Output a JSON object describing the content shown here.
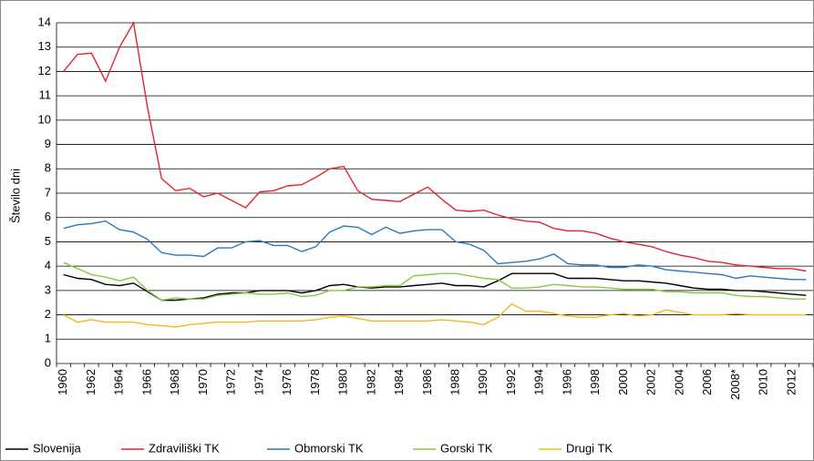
{
  "chart_data": {
    "type": "line",
    "y_label": "Število dni",
    "categories": [
      "1960",
      null,
      "1962",
      null,
      "1964",
      null,
      "1966",
      null,
      "1968",
      null,
      "1970",
      null,
      "1972",
      null,
      "1974",
      null,
      "1976",
      null,
      "1978",
      null,
      "1980",
      null,
      "1982",
      null,
      "1984",
      null,
      "1986",
      null,
      "1988",
      null,
      "1990",
      null,
      "1992",
      null,
      "1994",
      null,
      "1996",
      null,
      "1998",
      null,
      "2000",
      null,
      "2002",
      null,
      "2004",
      null,
      "2006",
      null,
      "2008*",
      null,
      "2010",
      null,
      "2012",
      null
    ],
    "series": [
      {
        "name": "Slovenija",
        "color": "#000000",
        "values": [
          3.65,
          3.5,
          3.45,
          3.25,
          3.2,
          3.3,
          2.95,
          2.6,
          2.6,
          2.65,
          2.7,
          2.85,
          2.9,
          2.9,
          3.0,
          3.0,
          3.0,
          2.9,
          3.0,
          3.2,
          3.25,
          3.15,
          3.1,
          3.15,
          3.15,
          3.2,
          3.25,
          3.3,
          3.2,
          3.2,
          3.15,
          3.4,
          3.7,
          3.7,
          3.7,
          3.7,
          3.5,
          3.5,
          3.5,
          3.45,
          3.4,
          3.4,
          3.35,
          3.3,
          3.2,
          3.1,
          3.05,
          3.05,
          3.0,
          3.0,
          2.95,
          2.9,
          2.85,
          2.8
        ]
      },
      {
        "name": "Zdraviliški TK",
        "color": "#e3252b",
        "values": [
          12.0,
          12.7,
          12.75,
          11.6,
          13.0,
          14.0,
          10.5,
          7.6,
          7.1,
          7.2,
          6.85,
          7.0,
          6.7,
          6.4,
          7.05,
          7.1,
          7.3,
          7.35,
          7.65,
          8.0,
          8.1,
          7.1,
          6.75,
          6.7,
          6.65,
          6.95,
          7.25,
          6.75,
          6.3,
          6.25,
          6.3,
          6.1,
          5.95,
          5.85,
          5.8,
          5.55,
          5.45,
          5.45,
          5.35,
          5.15,
          5.0,
          4.9,
          4.8,
          4.6,
          4.45,
          4.35,
          4.2,
          4.15,
          4.05,
          4.0,
          3.95,
          3.9,
          3.9,
          3.8
        ]
      },
      {
        "name": "Obmorski TK",
        "color": "#2a7ab9",
        "values": [
          5.55,
          5.7,
          5.75,
          5.85,
          5.5,
          5.4,
          5.1,
          4.55,
          4.45,
          4.45,
          4.4,
          4.75,
          4.75,
          5.0,
          5.05,
          4.85,
          4.85,
          4.6,
          4.8,
          5.4,
          5.65,
          5.6,
          5.3,
          5.6,
          5.35,
          5.45,
          5.5,
          5.5,
          5.0,
          4.9,
          4.65,
          4.1,
          4.15,
          4.2,
          4.3,
          4.5,
          4.1,
          4.05,
          4.05,
          3.95,
          3.95,
          4.05,
          4.0,
          3.85,
          3.8,
          3.75,
          3.7,
          3.65,
          3.5,
          3.6,
          3.55,
          3.5,
          3.45,
          3.45
        ]
      },
      {
        "name": "Gorski TK",
        "color": "#8dc63f",
        "values": [
          4.15,
          3.9,
          3.65,
          3.55,
          3.4,
          3.55,
          3.0,
          2.6,
          2.7,
          2.65,
          2.65,
          2.8,
          2.85,
          2.9,
          2.85,
          2.85,
          2.9,
          2.75,
          2.8,
          3.0,
          3.0,
          3.15,
          3.15,
          3.2,
          3.2,
          3.6,
          3.65,
          3.7,
          3.7,
          3.6,
          3.5,
          3.45,
          3.1,
          3.1,
          3.15,
          3.25,
          3.2,
          3.15,
          3.15,
          3.1,
          3.05,
          3.05,
          3.05,
          2.95,
          2.95,
          2.9,
          2.9,
          2.9,
          2.8,
          2.75,
          2.75,
          2.7,
          2.65,
          2.65
        ]
      },
      {
        "name": "Drugi TK",
        "color": "#f6b817",
        "values": [
          2.0,
          1.7,
          1.8,
          1.7,
          1.7,
          1.7,
          1.6,
          1.55,
          1.5,
          1.6,
          1.65,
          1.7,
          1.7,
          1.7,
          1.75,
          1.75,
          1.75,
          1.75,
          1.8,
          1.9,
          1.95,
          1.85,
          1.75,
          1.75,
          1.75,
          1.75,
          1.75,
          1.8,
          1.75,
          1.7,
          1.6,
          1.9,
          2.45,
          2.15,
          2.15,
          2.05,
          1.95,
          1.9,
          1.9,
          2.0,
          2.05,
          1.95,
          2.0,
          2.2,
          2.1,
          2.0,
          2.0,
          2.0,
          2.05,
          2.0,
          2.0,
          2.0,
          2.0,
          2.0
        ]
      }
    ],
    "ylim": [
      0,
      14
    ],
    "yticks": [
      0,
      1,
      2,
      3,
      4,
      5,
      6,
      7,
      8,
      9,
      10,
      11,
      12,
      13,
      14
    ],
    "grid": true,
    "legend": "bottom"
  }
}
